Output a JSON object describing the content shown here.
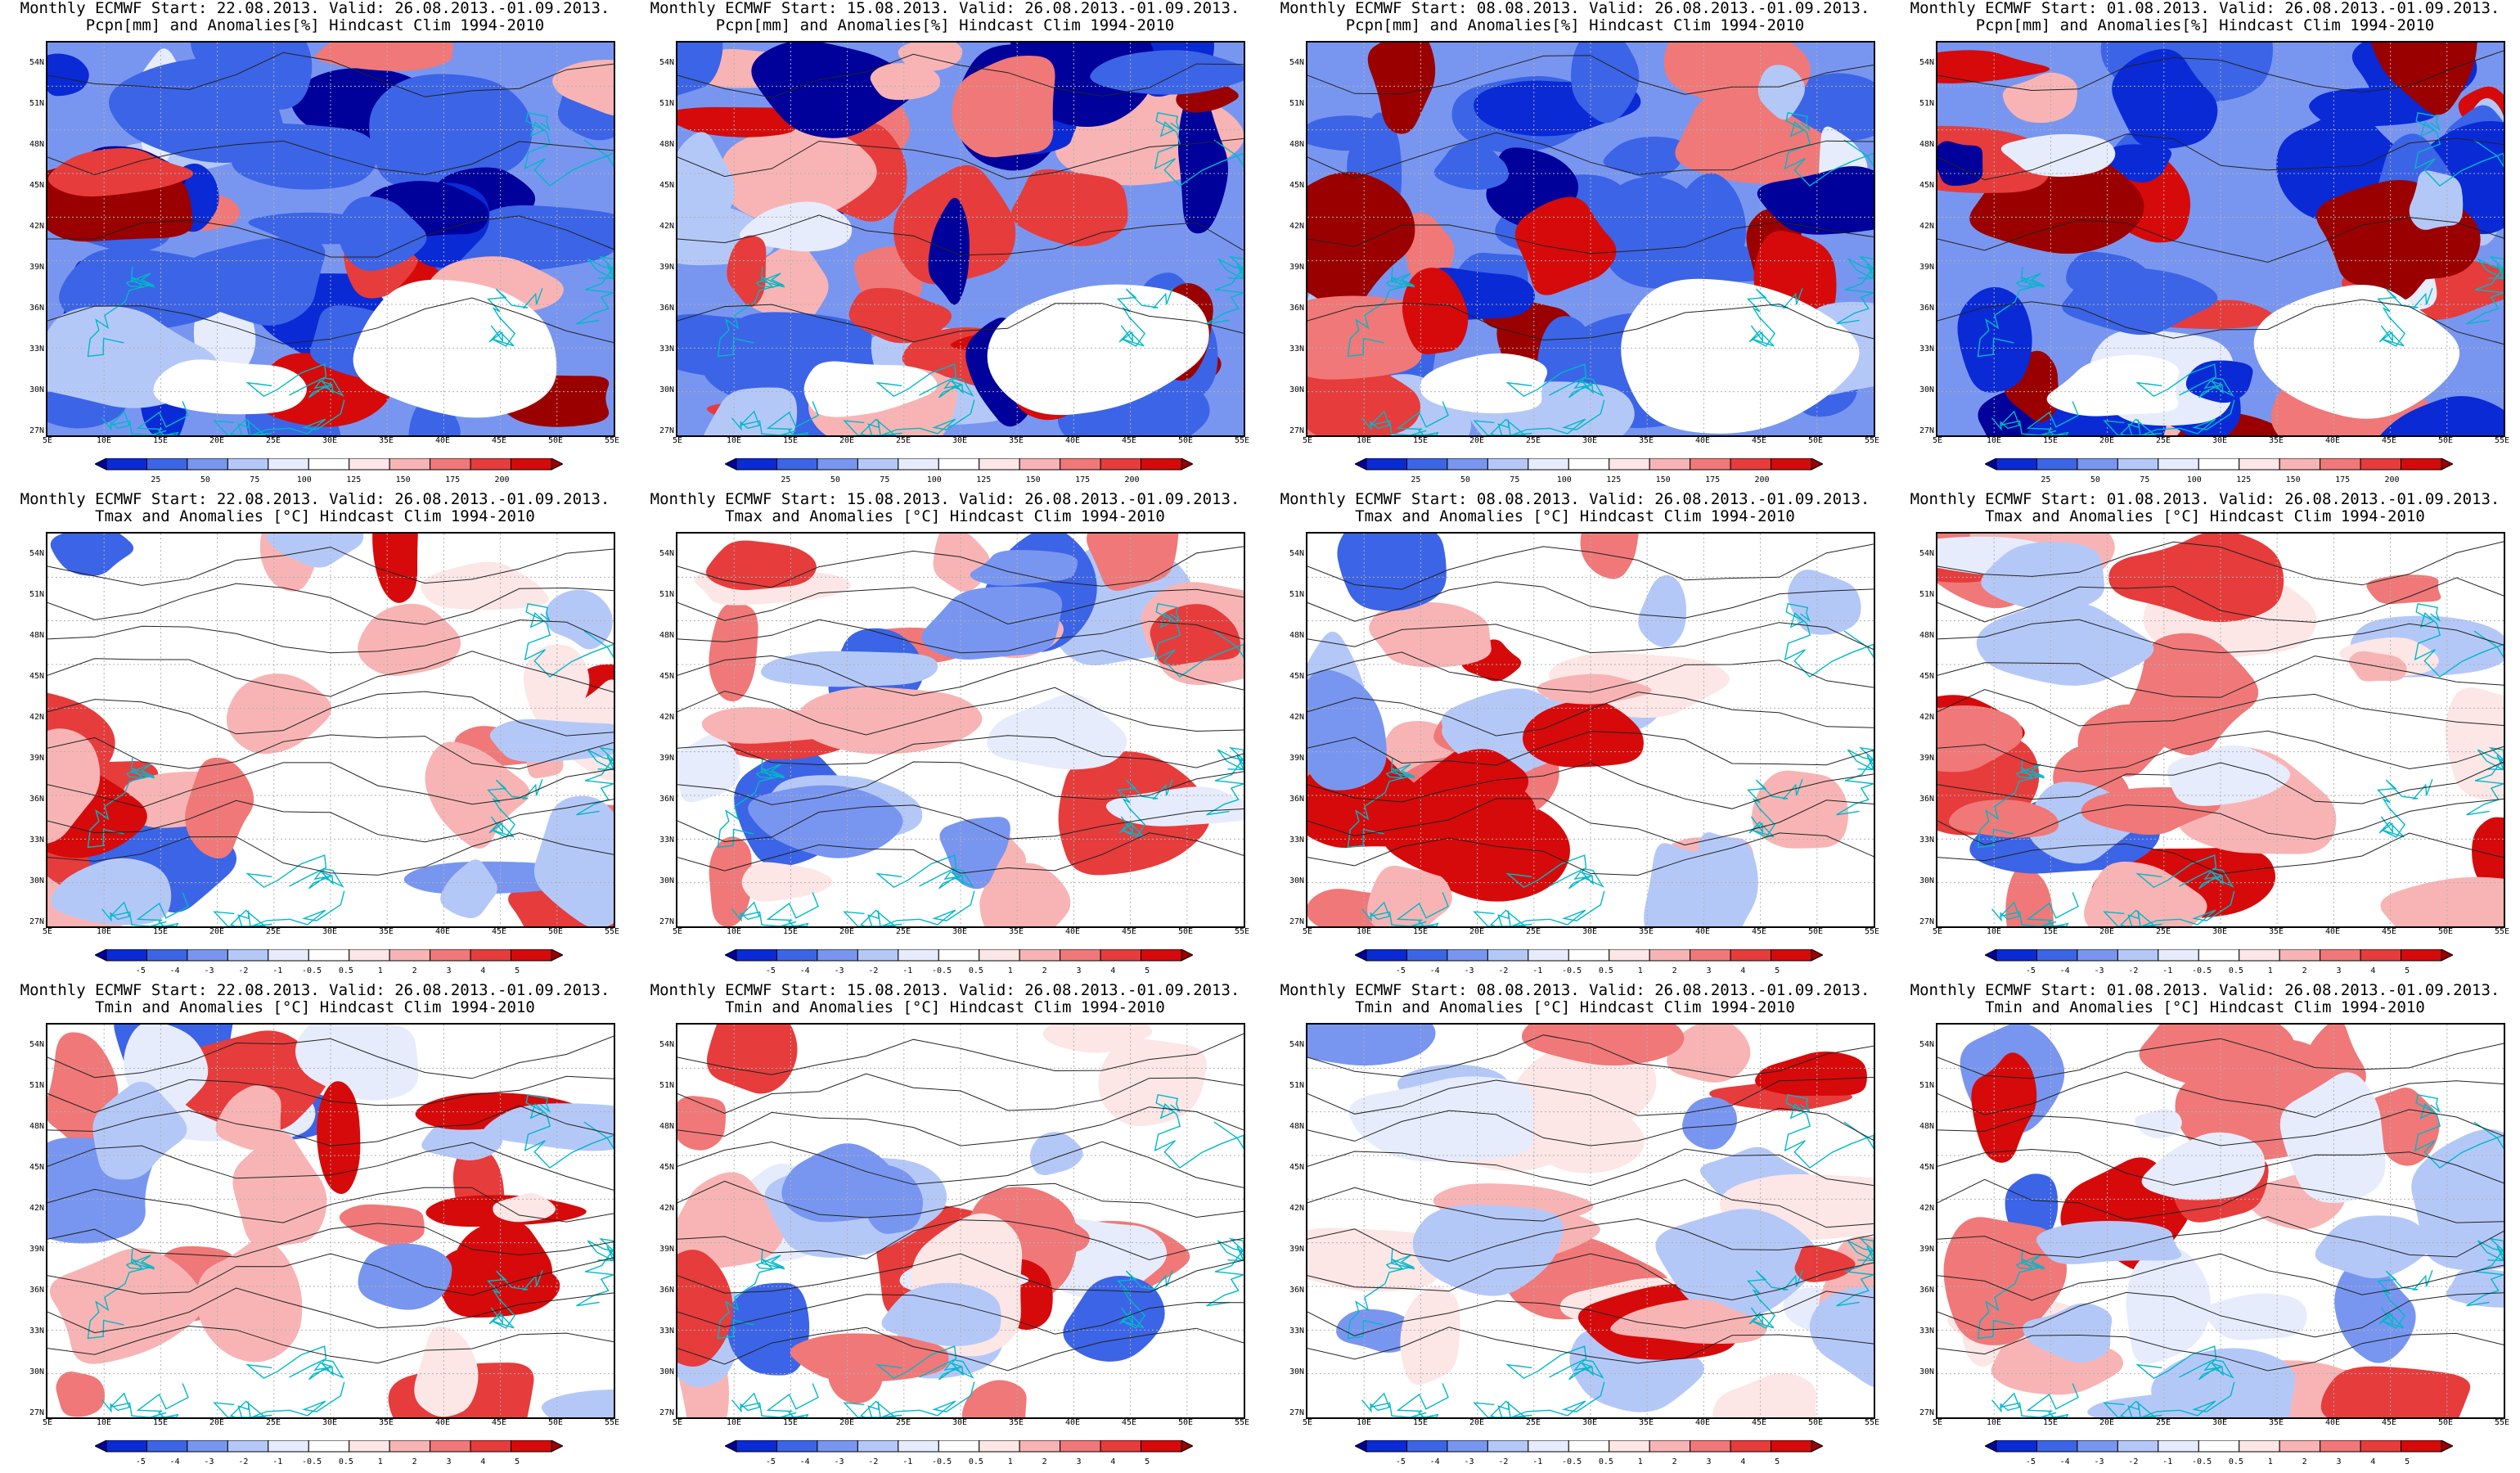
{
  "colors": {
    "accent_blue": "#0000cc",
    "accent_red": "#cc0000",
    "coast": "#00b8c8",
    "contour": "#222222",
    "grid": "#b0b0b0"
  },
  "lat_labels": [
    "54N",
    "51N",
    "48N",
    "45N",
    "42N",
    "39N",
    "36N",
    "33N",
    "30N",
    "27N"
  ],
  "lon_labels": [
    "5E",
    "10E",
    "15E",
    "20E",
    "25E",
    "30E",
    "35E",
    "40E",
    "45E",
    "50E",
    "55E"
  ],
  "colorbars": {
    "pcp": {
      "ticks": [
        "25",
        "50",
        "75",
        "100",
        "125",
        "150",
        "175",
        "200"
      ],
      "colors": [
        "#00009b",
        "#0a2ad6",
        "#3c64e6",
        "#7896f0",
        "#b4c8f8",
        "#e6ecfc",
        "#ffffff",
        "#fce6e6",
        "#f8b4b4",
        "#f07878",
        "#e63c3c",
        "#d60a0a",
        "#9b0000"
      ]
    },
    "temp": {
      "ticks": [
        "-5",
        "-4",
        "-3",
        "-2",
        "-1",
        "-0.5",
        "0.5",
        "1",
        "2",
        "3",
        "4",
        "5"
      ],
      "colors": [
        "#00009b",
        "#0a2ad6",
        "#3c64e6",
        "#7896f0",
        "#b4c8f8",
        "#e6ecfc",
        "#ffffff",
        "#fce6e6",
        "#f8b4b4",
        "#f07878",
        "#e63c3c",
        "#d60a0a",
        "#9b0000"
      ]
    }
  },
  "rows": [
    {
      "variable": "precipitation",
      "colorbar": "pcp",
      "panels": [
        {
          "line1": "Monthly ECMWF Start: 22.08.2013. Valid: 26.08.2013.-01.09.2013.",
          "line2": "Pcpn[mm] and Anomalies[%] Hindcast Clim 1994-2010"
        },
        {
          "line1": "Monthly ECMWF Start: 15.08.2013. Valid: 26.08.2013.-01.09.2013.",
          "line2": "Pcpn[mm] and Anomalies[%] Hindcast Clim 1994-2010"
        },
        {
          "line1": "Monthly ECMWF Start: 08.08.2013. Valid: 26.08.2013.-01.09.2013.",
          "line2": "Pcpn[mm] and Anomalies[%] Hindcast Clim 1994-2010"
        },
        {
          "line1": "Monthly ECMWF Start: 01.08.2013. Valid: 26.08.2013.-01.09.2013.",
          "line2": "Pcpn[mm] and Anomalies[%] Hindcast Clim 1994-2010"
        }
      ]
    },
    {
      "variable": "tmax",
      "colorbar": "temp",
      "panels": [
        {
          "line1": "Monthly ECMWF Start: 22.08.2013. Valid: 26.08.2013.-01.09.2013.",
          "line2": "Tmax and Anomalies [°C] Hindcast Clim 1994-2010"
        },
        {
          "line1": "Monthly ECMWF Start: 15.08.2013. Valid: 26.08.2013.-01.09.2013.",
          "line2": "Tmax and Anomalies [°C] Hindcast Clim 1994-2010"
        },
        {
          "line1": "Monthly ECMWF Start: 08.08.2013. Valid: 26.08.2013.-01.09.2013.",
          "line2": "Tmax and Anomalies [°C] Hindcast Clim 1994-2010"
        },
        {
          "line1": "Monthly ECMWF Start: 01.08.2013. Valid: 26.08.2013.-01.09.2013.",
          "line2": "Tmax and Anomalies [°C] Hindcast Clim 1994-2010"
        }
      ]
    },
    {
      "variable": "tmin",
      "colorbar": "temp",
      "panels": [
        {
          "line1": "Monthly ECMWF Start: 22.08.2013. Valid: 26.08.2013.-01.09.2013.",
          "line2": "Tmin and Anomalies [°C] Hindcast Clim 1994-2010"
        },
        {
          "line1": "Monthly ECMWF Start: 15.08.2013. Valid: 26.08.2013.-01.09.2013.",
          "line2": "Tmin and Anomalies [°C] Hindcast Clim 1994-2010"
        },
        {
          "line1": "Monthly ECMWF Start: 08.08.2013. Valid: 26.08.2013.-01.09.2013.",
          "line2": "Tmin and Anomalies [°C] Hindcast Clim 1994-2010"
        },
        {
          "line1": "Monthly ECMWF Start: 01.08.2013. Valid: 26.08.2013.-01.09.2013.",
          "line2": "Tmin and Anomalies [°C] Hindcast Clim 1994-2010"
        }
      ]
    }
  ]
}
